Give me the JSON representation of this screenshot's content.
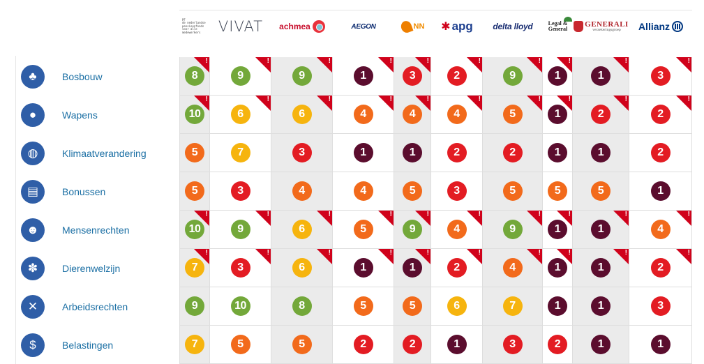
{
  "insurers": [
    {
      "key": "pensioen",
      "name": "De Nederlandse Pensioenfonds voor alle medewerkers",
      "text": "PF\nde nederlandse\npensioenfonds\nvoor alle\nmedewerkers"
    },
    {
      "key": "vivat",
      "name": "VIVAT",
      "text": "VIVAT"
    },
    {
      "key": "achmea",
      "name": "achmea",
      "text": "achmea"
    },
    {
      "key": "aegon",
      "name": "AEGON",
      "text": "AEGON"
    },
    {
      "key": "nn",
      "name": "NN",
      "text": "NN"
    },
    {
      "key": "apg",
      "name": "apg",
      "text": "apg"
    },
    {
      "key": "delta",
      "name": "delta lloyd",
      "text": "delta lloyd"
    },
    {
      "key": "legal",
      "name": "Legal & General",
      "text": "Legal &\nGeneral"
    },
    {
      "key": "generali",
      "name": "GENERALI verzekeringsgroep",
      "text": "GENERALI",
      "subtext": "verzekeringsgroep"
    },
    {
      "key": "allianz",
      "name": "Allianz",
      "text": "Allianz"
    }
  ],
  "colors": {
    "1": "#5b0d2e",
    "2": "#e31c23",
    "3": "#e31c23",
    "4": "#f26a1b",
    "5": "#f26a1b",
    "6": "#f6b40e",
    "7": "#f6b40e",
    "8": "#73a83a",
    "9": "#73a83a",
    "10": "#73a83a",
    "accent": "#2f5ea7",
    "flag": "#d0021b",
    "label": "#1b6fa4"
  },
  "topics": [
    {
      "label": "Bosbouw",
      "icon": "tree-icon",
      "glyph": "♣",
      "scores": [
        8,
        9,
        9,
        1,
        3,
        2,
        9,
        1,
        1,
        3
      ],
      "flags": [
        1,
        1,
        1,
        1,
        1,
        1,
        1,
        1,
        1,
        1
      ]
    },
    {
      "label": "Wapens",
      "icon": "bomb-icon",
      "glyph": "●",
      "scores": [
        10,
        6,
        6,
        4,
        4,
        4,
        5,
        1,
        2,
        2
      ],
      "flags": [
        1,
        1,
        1,
        1,
        1,
        1,
        1,
        1,
        1,
        1
      ]
    },
    {
      "label": "Klimaatverandering",
      "icon": "globe-icon",
      "glyph": "◍",
      "scores": [
        5,
        7,
        3,
        1,
        1,
        2,
        2,
        1,
        1,
        2
      ],
      "flags": [
        0,
        0,
        0,
        0,
        0,
        0,
        0,
        0,
        0,
        0
      ]
    },
    {
      "label": "Bonussen",
      "icon": "money-stack-icon",
      "glyph": "▤",
      "scores": [
        5,
        3,
        4,
        4,
        5,
        3,
        5,
        5,
        5,
        1
      ],
      "flags": [
        0,
        0,
        0,
        0,
        0,
        0,
        0,
        0,
        0,
        0
      ]
    },
    {
      "label": "Mensenrechten",
      "icon": "people-icon",
      "glyph": "☻",
      "scores": [
        10,
        9,
        6,
        5,
        9,
        4,
        9,
        1,
        1,
        4
      ],
      "flags": [
        1,
        1,
        1,
        1,
        1,
        1,
        1,
        1,
        1,
        1
      ]
    },
    {
      "label": "Dierenwelzijn",
      "icon": "paw-icon",
      "glyph": "✽",
      "scores": [
        7,
        3,
        6,
        1,
        1,
        2,
        4,
        1,
        1,
        2
      ],
      "flags": [
        1,
        1,
        1,
        1,
        1,
        1,
        1,
        1,
        1,
        1
      ]
    },
    {
      "label": "Arbeidsrechten",
      "icon": "tools-icon",
      "glyph": "✕",
      "scores": [
        9,
        10,
        8,
        5,
        5,
        6,
        7,
        1,
        1,
        3
      ],
      "flags": [
        0,
        0,
        0,
        0,
        0,
        0,
        0,
        0,
        0,
        0
      ]
    },
    {
      "label": "Belastingen",
      "icon": "tag-icon",
      "glyph": "$",
      "scores": [
        7,
        5,
        5,
        2,
        2,
        1,
        3,
        2,
        1,
        1
      ],
      "flags": [
        0,
        0,
        0,
        0,
        0,
        0,
        0,
        0,
        0,
        0
      ]
    }
  ]
}
